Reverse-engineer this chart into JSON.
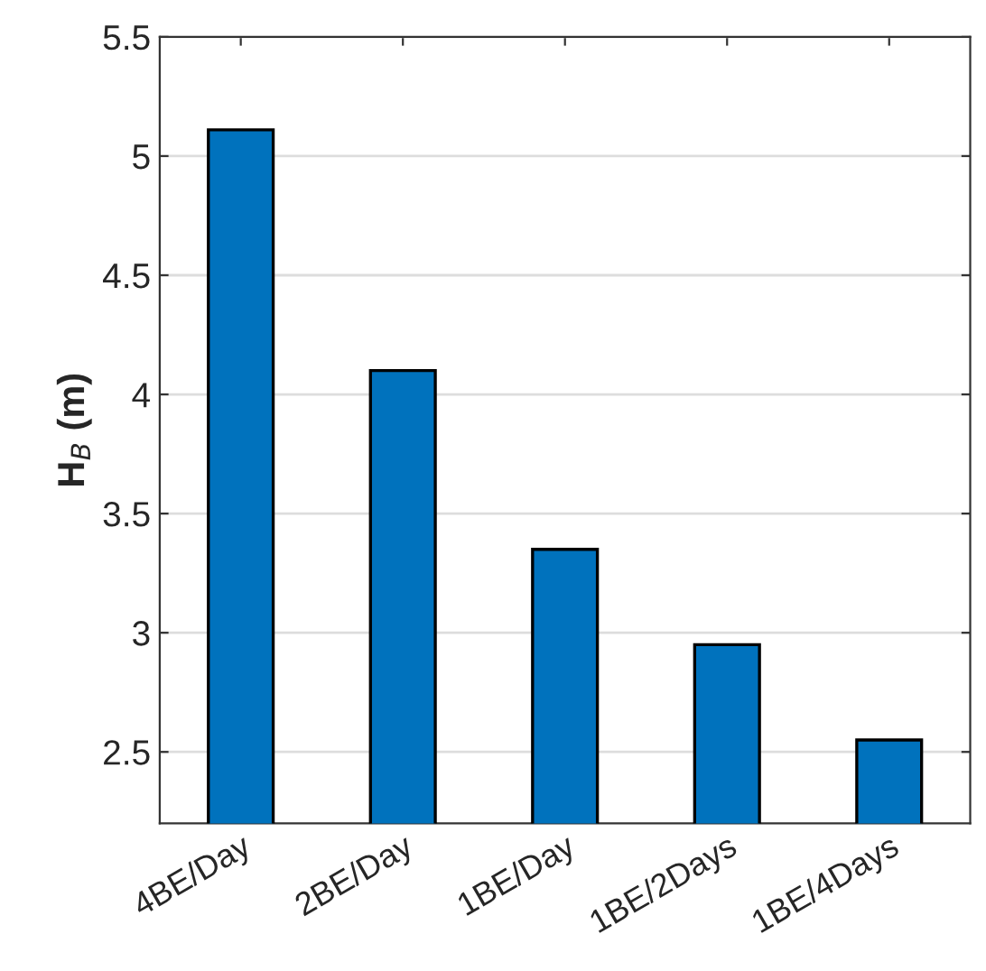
{
  "chart_data": {
    "type": "bar",
    "ylabel": "H$_{B}$ (m)",
    "categories": [
      "4BE/Day",
      "2BE/Day",
      "1BE/Day",
      "1BE/2Days",
      "1BE/4Days"
    ],
    "values": [
      5.11,
      4.1,
      3.35,
      2.95,
      2.55
    ],
    "color": "#0072bd",
    "ylim": [
      2.2,
      5.5
    ],
    "yticks": [
      2.5,
      3,
      3.5,
      4,
      4.5,
      5,
      5.5
    ],
    "grid": "y"
  }
}
